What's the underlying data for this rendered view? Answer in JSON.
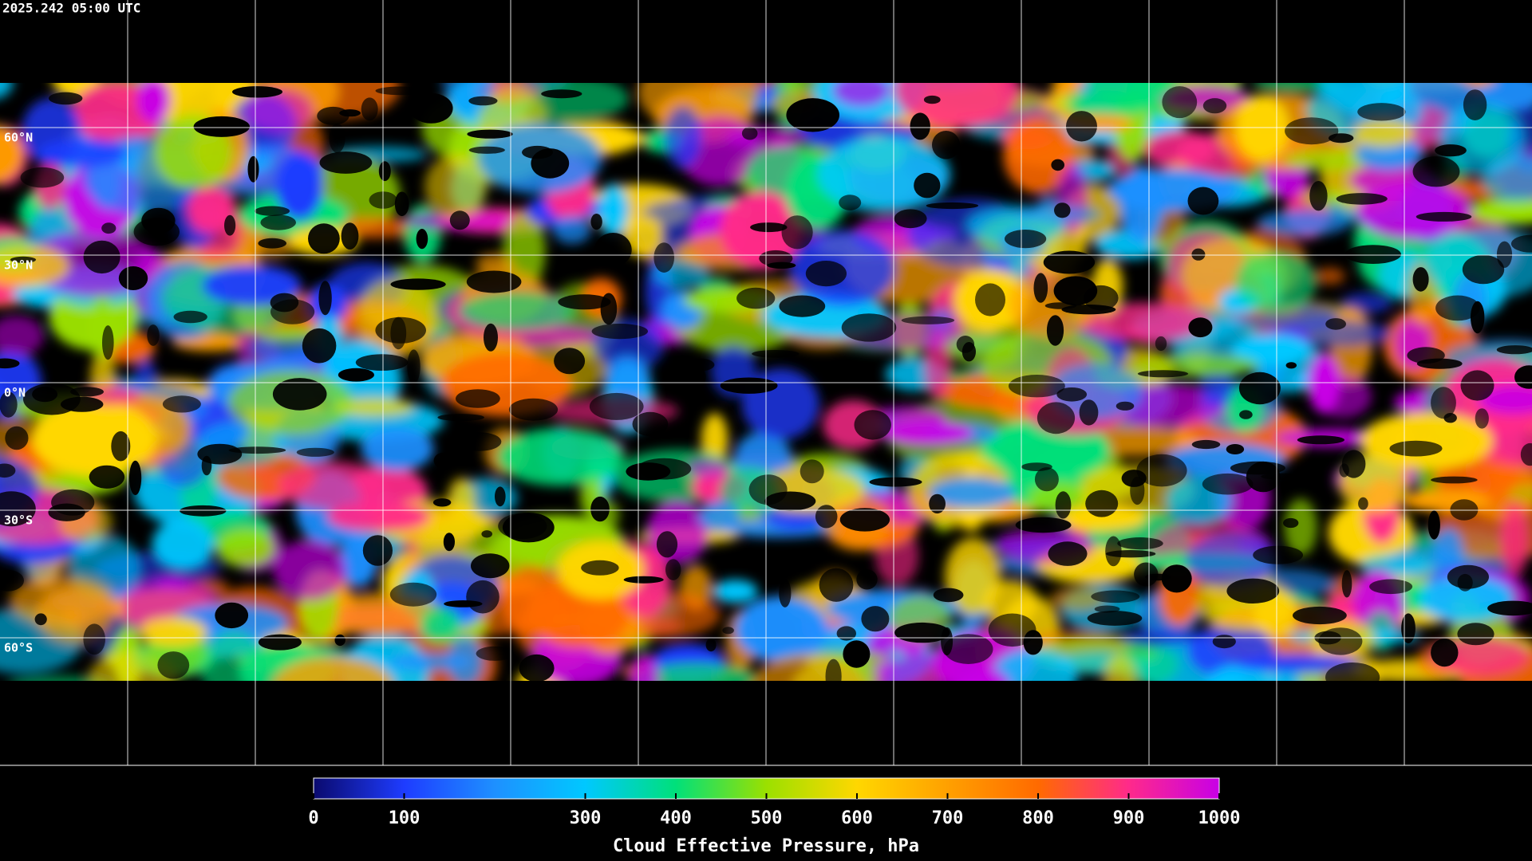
{
  "header": {
    "title": "2025.242 05:00 UTC"
  },
  "map": {
    "lat_lines": [
      {
        "value": 60,
        "label": "60°N"
      },
      {
        "value": 30,
        "label": "30°N"
      },
      {
        "value": 0,
        "label": "0°N"
      },
      {
        "value": -30,
        "label": "30°S"
      },
      {
        "value": -60,
        "label": "60°S"
      }
    ]
  },
  "colorbar": {
    "label": "Cloud Effective Pressure, hPa",
    "lim": [
      0,
      1000
    ],
    "ticks": [
      0,
      100,
      300,
      400,
      500,
      600,
      700,
      800,
      900,
      1000
    ],
    "colors": [
      "#0a0a6e",
      "#1e3cff",
      "#1e90ff",
      "#00c8ff",
      "#00e07a",
      "#9be000",
      "#ffd700",
      "#ffa000",
      "#ff6a00",
      "#ff2a8a",
      "#c800e6"
    ]
  }
}
